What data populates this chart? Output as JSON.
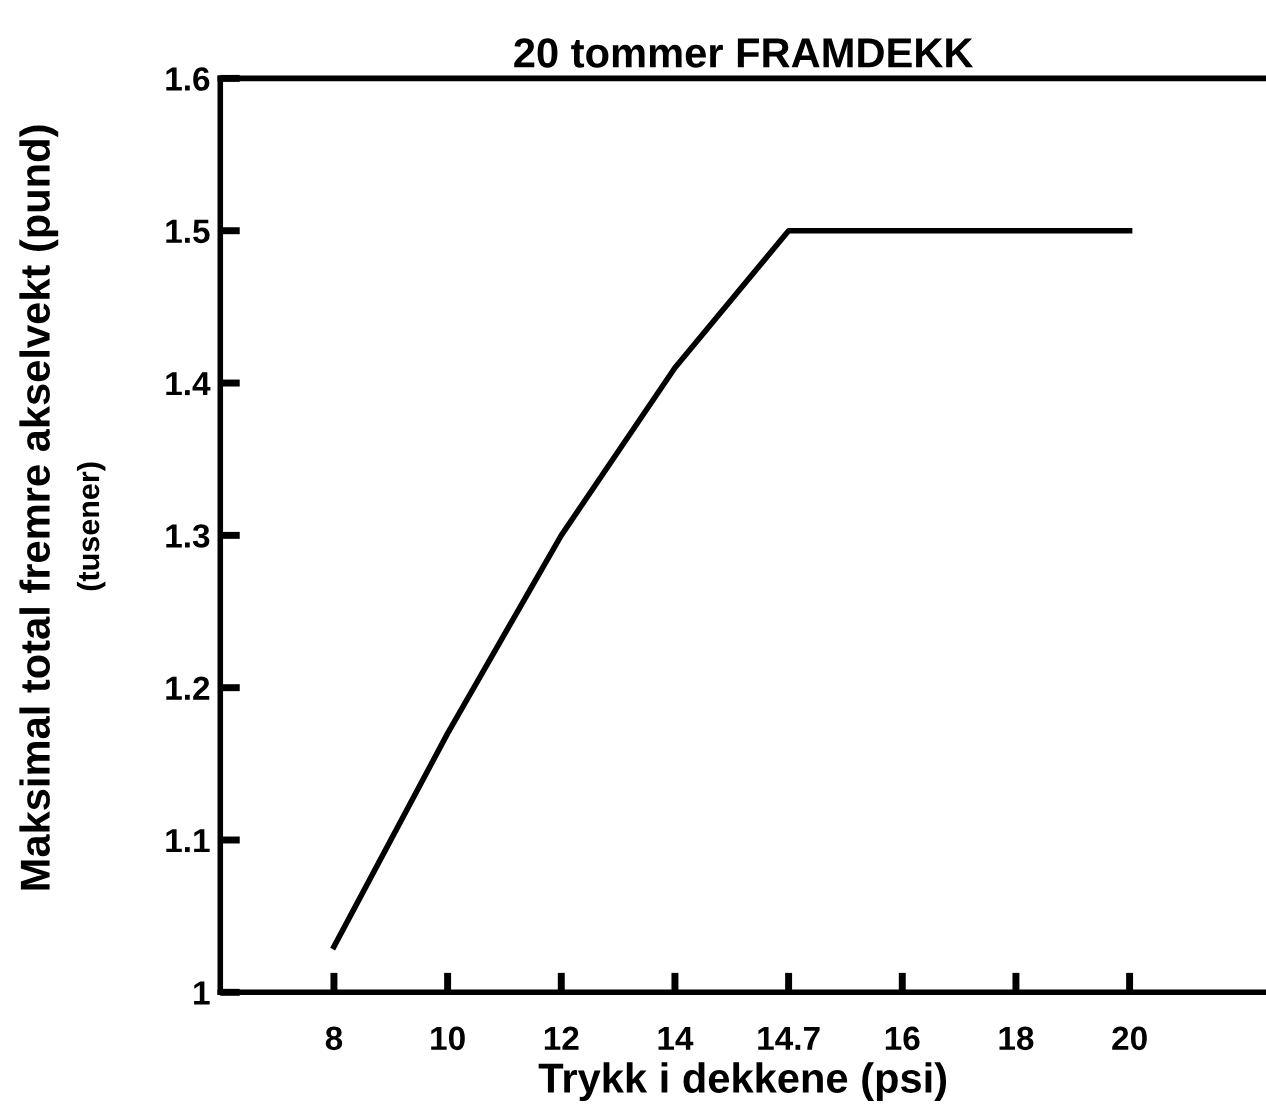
{
  "chart_data": {
    "type": "line",
    "title": "20 tommer FRAMDEKK",
    "xlabel": "Trykk i dekkene (psi)",
    "ylabel": "Maksimal total fremre akselvekt (pund)",
    "annotations": [
      "(tusener)"
    ],
    "categories": [
      "8",
      "10",
      "12",
      "14",
      "14.7",
      "16",
      "18",
      "20"
    ],
    "series": [
      {
        "color": "#000000",
        "values": [
          1.03,
          1.17,
          1.3,
          1.41,
          1.5,
          1.5,
          1.5,
          1.5
        ]
      }
    ],
    "ylim": [
      1,
      1.6
    ],
    "yticks": [
      1,
      1.1,
      1.2,
      1.3,
      1.4,
      1.5,
      1.6
    ],
    "grid": false,
    "marker": "none",
    "line_style": "solid"
  }
}
